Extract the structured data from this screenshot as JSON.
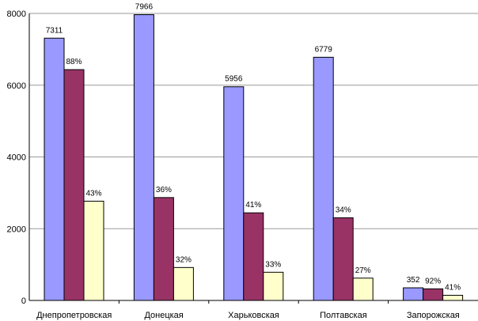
{
  "chart_data": {
    "type": "bar",
    "title": "",
    "xlabel": "",
    "ylabel": "",
    "ylim": [
      0,
      8000
    ],
    "yticks": [
      "0",
      "2000",
      "4000",
      "6000",
      "8000"
    ],
    "grid": true,
    "categories": [
      "Днепропетровская",
      "Донецкая",
      "Харьковская",
      "Полтавская",
      "Запорожская"
    ],
    "series": [
      {
        "color": "#9999ff",
        "values": [
          7311,
          7966,
          5956,
          6779,
          352
        ],
        "labels": [
          "7311",
          "7966",
          "5956",
          "6779",
          "352"
        ]
      },
      {
        "color": "#993366",
        "values": [
          6434,
          2868,
          2442,
          2305,
          324
        ],
        "labels": [
          "88%",
          "36%",
          "41%",
          "34%",
          "92%"
        ]
      },
      {
        "color": "#ffffcc",
        "values": [
          2767,
          918,
          786,
          622,
          144
        ],
        "labels": [
          "43%",
          "32%",
          "33%",
          "27%",
          "41%"
        ]
      }
    ]
  }
}
